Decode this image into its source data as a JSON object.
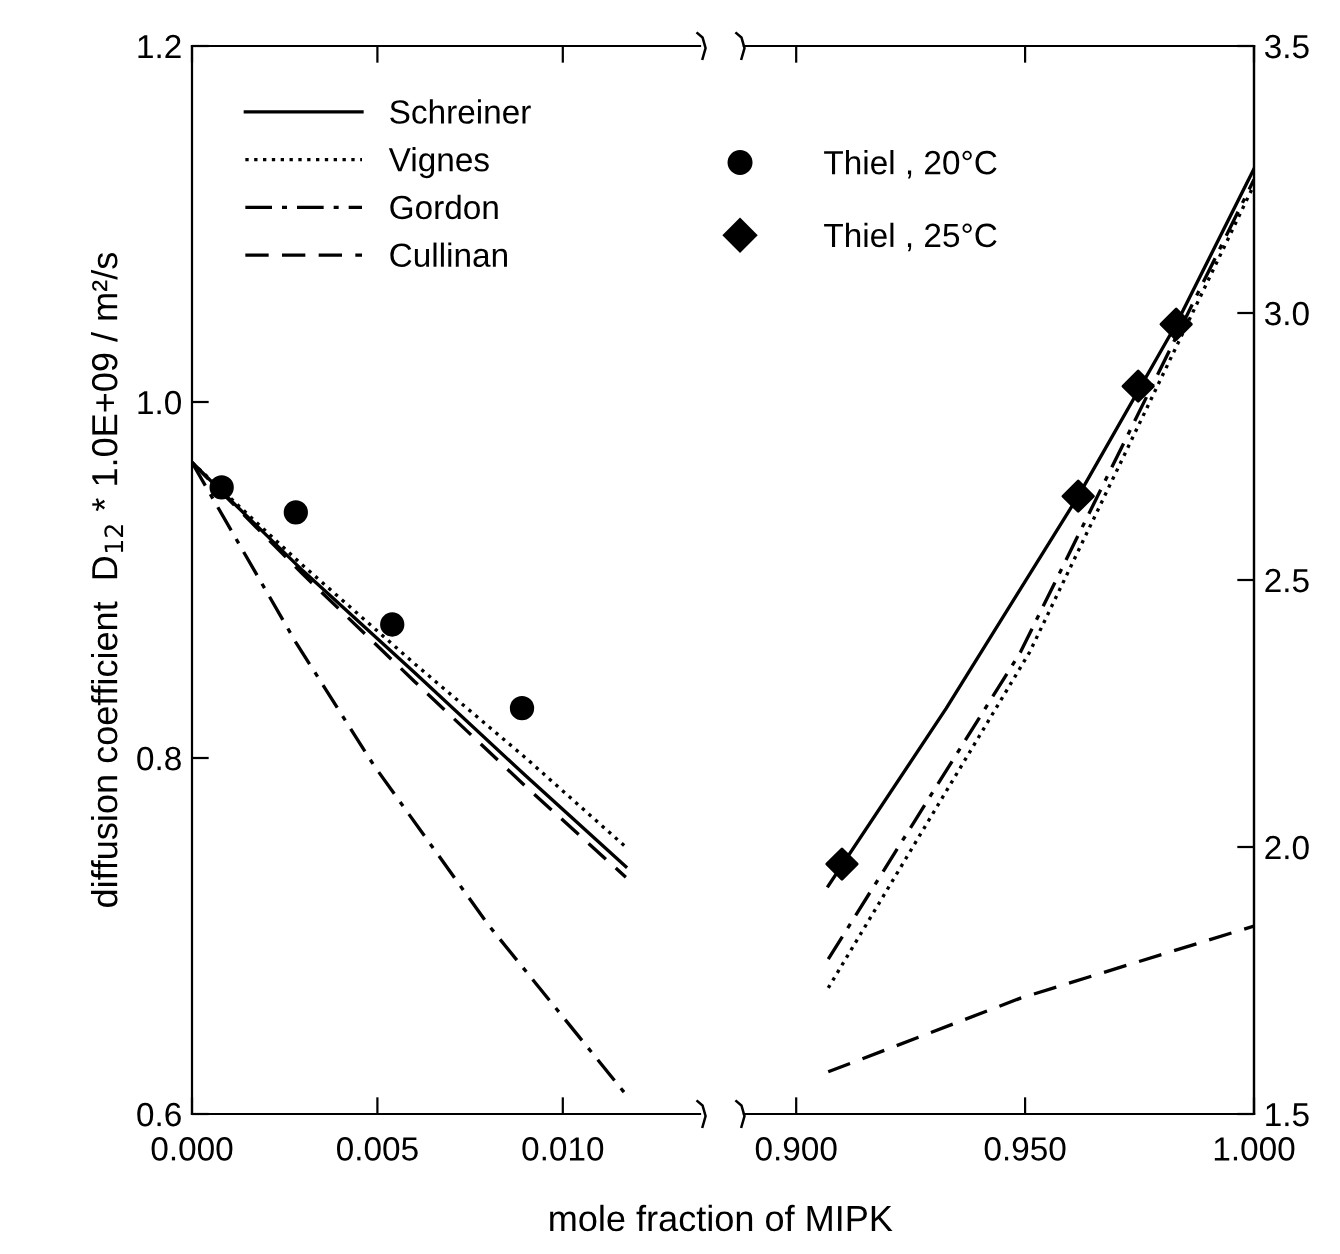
{
  "chart_data": [
    {
      "type": "line",
      "xlim": [
        0,
        0.0137
      ],
      "ylim": [
        0.6,
        1.2
      ],
      "xticks": [
        {
          "value": 0,
          "label": "0.000"
        },
        {
          "value": 0.005,
          "label": "0.005"
        },
        {
          "value": 0.01,
          "label": "0.010"
        }
      ],
      "yticks": [
        {
          "value": 0.6,
          "label": "0.6"
        },
        {
          "value": 0.8,
          "label": "0.8"
        },
        {
          "value": 1.0,
          "label": "1.0"
        },
        {
          "value": 1.2,
          "label": "1.2"
        }
      ],
      "xlabel": "mole fraction of MIPK",
      "ylabel": "diffusion coefficient  D$_{12}$ * 1.0E+09 / m²/s",
      "legend": "top right",
      "series": [
        {
          "name": "Schreiner",
          "color": "#000000",
          "line_style": "solid",
          "x": [
            0,
            0.003,
            0.006,
            0.009,
            0.0117
          ],
          "values": [
            0.966,
            0.905,
            0.848,
            0.79,
            0.739
          ]
        },
        {
          "name": "Vignes",
          "color": "#000000",
          "line_style": "dotted",
          "x": [
            0,
            0.003,
            0.006,
            0.009,
            0.0117
          ],
          "values": [
            0.966,
            0.908,
            0.853,
            0.8,
            0.75
          ]
        },
        {
          "name": "Gordon",
          "color": "#000000",
          "line_style": "dashdot",
          "x": [
            0,
            0.0028,
            0.0049,
            0.008,
            0.0117
          ],
          "values": [
            0.966,
            0.865,
            0.796,
            0.706,
            0.611
          ]
        },
        {
          "name": "Cullinan",
          "color": "#000000",
          "line_style": "dashed",
          "x": [
            0,
            0.003,
            0.006,
            0.009,
            0.0117
          ],
          "values": [
            0.966,
            0.903,
            0.843,
            0.784,
            0.733
          ]
        },
        {
          "name": "Thiel , 20°C",
          "type": "scatter",
          "marker": "circle",
          "color": "#000000",
          "x": [
            0.0008,
            0.0028,
            0.0054,
            0.0089
          ],
          "values": [
            0.952,
            0.938,
            0.875,
            0.828
          ]
        }
      ]
    },
    {
      "type": "line",
      "xlim": [
        0.8886,
        1.0
      ],
      "y2lim": [
        1.5,
        3.5
      ],
      "legend": "top left",
      "xticks": [
        {
          "value": 0.9,
          "label": "0.900"
        },
        {
          "value": 0.95,
          "label": "0.950"
        },
        {
          "value": 1.0,
          "label": "1.000"
        }
      ],
      "y2ticks": [
        1.5,
        {
          "value": 2,
          "label": "2.0"
        },
        2.5,
        {
          "value": 3,
          "label": "3.0"
        },
        3.5
      ],
      "series": [
        {
          "color": "#000000",
          "line_style": "solid",
          "axis": "y2",
          "x": [
            0.907,
            0.9328,
            0.9616,
            0.983,
            1.0
          ],
          "values": [
            1.927,
            2.26,
            2.657,
            2.979,
            3.27
          ]
        },
        {
          "color": "#000000",
          "line_style": "dotted",
          "axis": "y2",
          "x": [
            0.907,
            0.951,
            1.0
          ],
          "values": [
            1.736,
            2.365,
            3.24
          ]
        },
        {
          "color": "#000000",
          "line_style": "dashdot",
          "axis": "y2",
          "x": [
            0.907,
            0.949,
            1.0
          ],
          "values": [
            1.79,
            2.365,
            3.25
          ]
        },
        {
          "color": "#000000",
          "line_style": "dashed",
          "axis": "y2",
          "x": [
            0.907,
            0.949,
            1.0
          ],
          "values": [
            1.579,
            1.717,
            1.852
          ]
        },
        {
          "name": "Thiel , 25°C",
          "type": "scatter",
          "marker": "diamond",
          "color": "#000000",
          "axis": "y2",
          "x": [
            0.91,
            0.9616,
            0.9747,
            0.983
          ],
          "values": [
            1.968,
            2.657,
            2.863,
            2.979
          ]
        }
      ]
    }
  ]
}
